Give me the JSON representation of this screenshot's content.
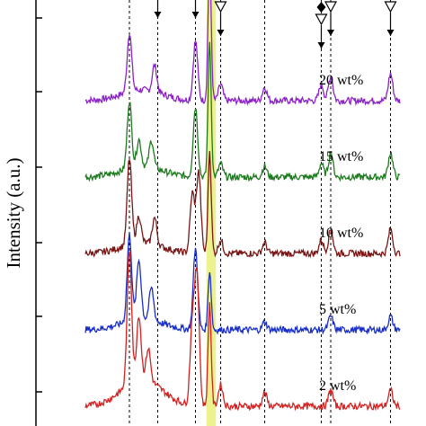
{
  "chart_data": {
    "type": "line",
    "title": "",
    "xlabel": "",
    "ylabel": "Intensity (a.u.)",
    "grid": false,
    "legend": "labels beside each trace",
    "x_range": [
      0,
      100
    ],
    "reference_lines_x": [
      14,
      23,
      35,
      43,
      57,
      75,
      78,
      97
    ],
    "highlight_band_x": [
      38.5,
      41.5
    ],
    "markers": [
      {
        "symbol": "triangle-open",
        "x": 43
      },
      {
        "symbol": "diamond-filled",
        "x": 75
      },
      {
        "symbol": "triangle-open",
        "x": 75
      },
      {
        "symbol": "triangle-open",
        "x": 78
      },
      {
        "symbol": "triangle-open",
        "x": 97
      }
    ],
    "series": [
      {
        "name": "20 wt%",
        "color": "#8B22C8",
        "offset": 4.0,
        "peaks": [
          [
            14,
            0.22
          ],
          [
            22,
            0.1
          ],
          [
            35,
            0.22
          ],
          [
            39.5,
            0.52
          ],
          [
            43,
            0.06
          ],
          [
            57,
            0.05
          ],
          [
            75,
            0.06
          ],
          [
            78,
            0.09
          ],
          [
            97,
            0.1
          ]
        ]
      },
      {
        "name": "15 wt%",
        "color": "#1E7A1E",
        "offset": 3.0,
        "peaks": [
          [
            14,
            0.25
          ],
          [
            17,
            0.1
          ],
          [
            21,
            0.1
          ],
          [
            35,
            0.26
          ],
          [
            39.5,
            0.5
          ],
          [
            43,
            0.05
          ],
          [
            57,
            0.04
          ],
          [
            75,
            0.05
          ],
          [
            78,
            0.09
          ],
          [
            97,
            0.09
          ]
        ]
      },
      {
        "name": "10 wt%",
        "color": "#7B1515",
        "offset": 2.0,
        "peaks": [
          [
            14,
            0.32
          ],
          [
            17,
            0.1
          ],
          [
            22,
            0.1
          ],
          [
            34,
            0.22
          ],
          [
            36,
            0.3
          ],
          [
            39.5,
            0.38
          ],
          [
            43,
            0.05
          ],
          [
            57,
            0.04
          ],
          [
            75,
            0.05
          ],
          [
            78,
            0.09
          ],
          [
            97,
            0.09
          ]
        ]
      },
      {
        "name": "5 wt%",
        "color": "#1A2FC8",
        "offset": 1.0,
        "peaks": [
          [
            14,
            0.32
          ],
          [
            17,
            0.22
          ],
          [
            21,
            0.12
          ],
          [
            35,
            0.3
          ],
          [
            39.5,
            0.22
          ],
          [
            57,
            0.03
          ],
          [
            78,
            0.05
          ],
          [
            97,
            0.05
          ]
        ]
      },
      {
        "name": "2 wt%",
        "color": "#D32020",
        "offset": 0.0,
        "peaks": [
          [
            14,
            0.5
          ],
          [
            17,
            0.24
          ],
          [
            20,
            0.12
          ],
          [
            34,
            0.3
          ],
          [
            35.5,
            0.48
          ],
          [
            39.5,
            0.38
          ],
          [
            43,
            0.08
          ],
          [
            57,
            0.05
          ],
          [
            78,
            0.06
          ],
          [
            97,
            0.06
          ]
        ]
      }
    ]
  }
}
